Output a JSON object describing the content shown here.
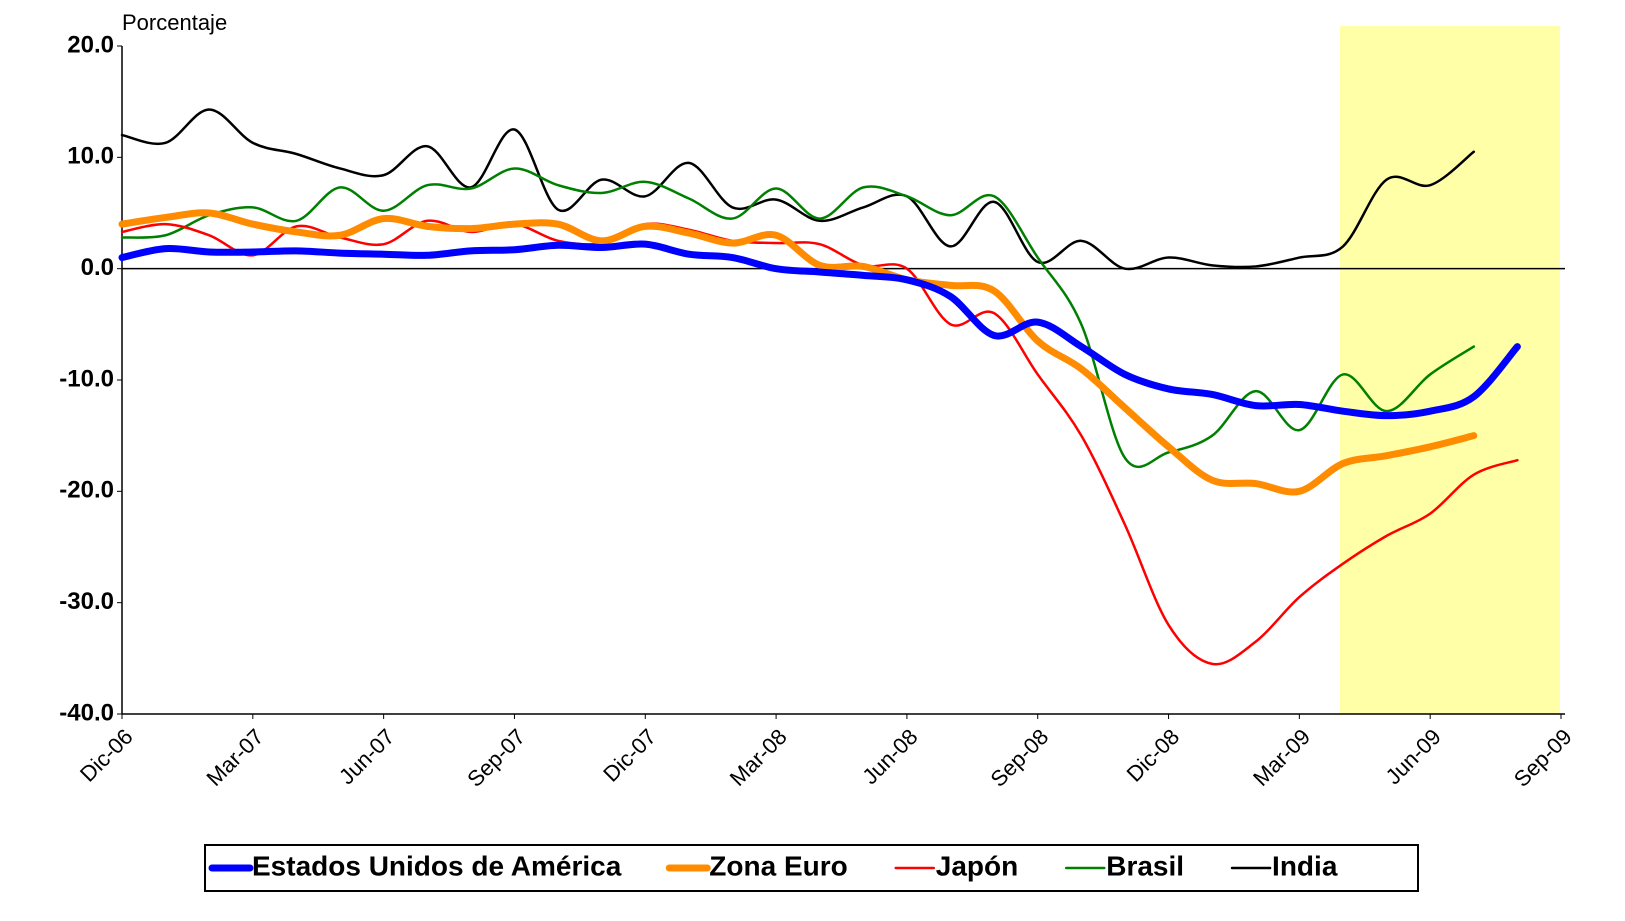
{
  "chart_data": {
    "type": "line",
    "y_label": "Porcentaje",
    "categories": [
      "Dic-06",
      null,
      null,
      "Mar-07",
      null,
      null,
      "Jun-07",
      null,
      null,
      "Sep-07",
      null,
      null,
      "Dic-07",
      null,
      null,
      "Mar-08",
      null,
      null,
      "Jun-08",
      null,
      null,
      "Sep-08",
      null,
      null,
      "Dic-08",
      null,
      null,
      "Mar-09",
      null,
      null,
      "Jun-09",
      null,
      null,
      "Sep-09"
    ],
    "ylim": [
      -40,
      20
    ],
    "yticks": [
      {
        "value": 20,
        "label": "20.0"
      },
      {
        "value": 10,
        "label": "10.0"
      },
      {
        "value": 0,
        "label": "0.0"
      },
      {
        "value": -10,
        "label": "-10.0"
      },
      {
        "value": -20,
        "label": "-20.0"
      },
      {
        "value": -30,
        "label": "-30.0"
      },
      {
        "value": -40,
        "label": "-40.0"
      }
    ],
    "series": [
      {
        "name": "Estados Unidos de América",
        "color": "#0000ff",
        "width": 7,
        "values": [
          1,
          1.8,
          1.5,
          1.5,
          1.6,
          1.4,
          1.3,
          1.2,
          1.6,
          1.7,
          2.1,
          1.9,
          2.2,
          1.3,
          1,
          0,
          -0.3,
          -0.6,
          -1,
          -2.5,
          -6,
          -4.8,
          -7,
          -9.5,
          -10.8,
          -11.3,
          -12.3,
          -12.2,
          -12.8,
          -13.2,
          -12.8,
          -11.5,
          -7,
          null
        ]
      },
      {
        "name": "Zona Euro",
        "color": "#ff8c00",
        "width": 7,
        "values": [
          4,
          4.6,
          5,
          4,
          3.3,
          3,
          4.5,
          3.8,
          3.6,
          4,
          4,
          2.5,
          3.8,
          3.2,
          2.3,
          3,
          0.3,
          0.2,
          -1,
          -1.5,
          -2,
          -6.5,
          -9,
          -12.5,
          -16,
          -19,
          -19.3,
          -20,
          -17.5,
          -16.8,
          -16,
          -15,
          null,
          null
        ]
      },
      {
        "name": "Japón",
        "color": "#ff0000",
        "width": 2.5,
        "values": [
          3.3,
          4,
          3,
          1.2,
          3.8,
          2.8,
          2.2,
          4.3,
          3.3,
          4,
          2.5,
          2.3,
          4,
          3.5,
          2.5,
          2.3,
          2.2,
          0.3,
          0,
          -5,
          -4,
          -9.5,
          -15,
          -23,
          -32,
          -35.5,
          -33.5,
          -29.5,
          -26.5,
          -24,
          -22,
          -18.5,
          -17.2,
          null
        ]
      },
      {
        "name": "Brasil",
        "color": "#008000",
        "width": 2.5,
        "values": [
          2.8,
          3,
          4.8,
          5.5,
          4.3,
          7.3,
          5.2,
          7.5,
          7.2,
          9,
          7.5,
          6.8,
          7.8,
          6.3,
          4.5,
          7.2,
          4.5,
          7.3,
          6.5,
          4.8,
          6.5,
          1,
          -5,
          -17,
          -16.5,
          -15,
          -11,
          -14.5,
          -9.5,
          -12.8,
          -9.5,
          -7,
          null,
          null
        ]
      },
      {
        "name": "India",
        "color": "#000000",
        "width": 2.5,
        "values": [
          12,
          11.3,
          14.3,
          11.3,
          10.3,
          9,
          8.4,
          11,
          7.3,
          12.5,
          5.3,
          8,
          6.5,
          9.5,
          5.5,
          6.2,
          4.3,
          5.5,
          6.5,
          2,
          6,
          0.6,
          2.5,
          0,
          1,
          0.3,
          0.2,
          1,
          2,
          8,
          7.5,
          10.5,
          null,
          null
        ]
      }
    ]
  }
}
